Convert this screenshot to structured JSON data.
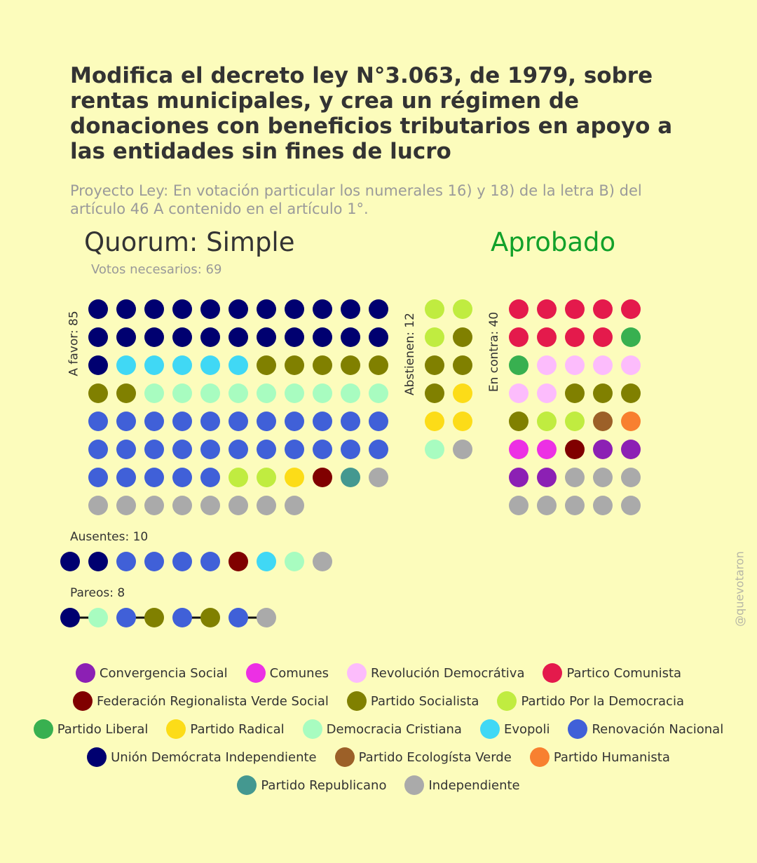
{
  "title": "Modifica el decreto ley N°3.063, de 1979, sobre rentas municipales, y crea un régimen de donaciones con beneficios tributarios en apoyo a las entidades sin fines de lucro",
  "subtitle": "Proyecto Ley: En votación particular los numerales 16) y 18) de la letra B) del artículo 46 A contenido en el artículo 1°.",
  "quorum": "Quorum: Simple",
  "result": "Aprobado",
  "votes_needed": "Votos necesarios: 69",
  "watermark": "@quevotaron",
  "colors": {
    "UDI": "#000070",
    "EVO": "#40d8f5",
    "PS": "#808000",
    "DC": "#a8fcc0",
    "RN": "#4060d8",
    "PPD": "#c0ec40",
    "PR": "#fcdc18",
    "FRVS": "#800000",
    "REP": "#449890",
    "IND": "#aaaaaa",
    "PC": "#e41a4c",
    "PL": "#38b050",
    "RD": "#fcbcfc",
    "PEV": "#9c6028",
    "PH": "#f88030",
    "COM": "#ec30e4",
    "CS": "#8c20b4"
  },
  "chart_data": {
    "type": "table",
    "groups": [
      {
        "key": "favor",
        "label": "A favor: 85",
        "count": 85,
        "cols": 11,
        "parties": [
          "UDI",
          "UDI",
          "UDI",
          "UDI",
          "UDI",
          "UDI",
          "UDI",
          "UDI",
          "UDI",
          "UDI",
          "UDI",
          "UDI",
          "UDI",
          "UDI",
          "UDI",
          "UDI",
          "UDI",
          "UDI",
          "UDI",
          "UDI",
          "UDI",
          "UDI",
          "UDI",
          "EVO",
          "EVO",
          "EVO",
          "EVO",
          "EVO",
          "PS",
          "PS",
          "PS",
          "PS",
          "PS",
          "PS",
          "PS",
          "DC",
          "DC",
          "DC",
          "DC",
          "DC",
          "DC",
          "DC",
          "DC",
          "DC",
          "RN",
          "RN",
          "RN",
          "RN",
          "RN",
          "RN",
          "RN",
          "RN",
          "RN",
          "RN",
          "RN",
          "RN",
          "RN",
          "RN",
          "RN",
          "RN",
          "RN",
          "RN",
          "RN",
          "RN",
          "RN",
          "RN",
          "RN",
          "RN",
          "RN",
          "RN",
          "RN",
          "PPD",
          "PPD",
          "PR",
          "FRVS",
          "REP",
          "IND",
          "IND",
          "IND",
          "IND",
          "IND",
          "IND",
          "IND",
          "IND",
          "IND"
        ]
      },
      {
        "key": "abstain",
        "label": "Abstienen: 12",
        "count": 12,
        "cols": 2,
        "parties": [
          "PPD",
          "PPD",
          "PPD",
          "PS",
          "PS",
          "PS",
          "PS",
          "PR",
          "PR",
          "PR",
          "DC",
          "IND"
        ]
      },
      {
        "key": "contra",
        "label": "En contra: 40",
        "count": 40,
        "cols": 5,
        "parties": [
          "PC",
          "PC",
          "PC",
          "PC",
          "PC",
          "PC",
          "PC",
          "PC",
          "PC",
          "PL",
          "PL",
          "RD",
          "RD",
          "RD",
          "RD",
          "RD",
          "RD",
          "PS",
          "PS",
          "PS",
          "PS",
          "PPD",
          "PPD",
          "PEV",
          "PH",
          "COM",
          "COM",
          "FRVS",
          "CS",
          "CS",
          "CS",
          "CS",
          "IND",
          "IND",
          "IND",
          "IND",
          "IND",
          "IND",
          "IND",
          "IND"
        ]
      },
      {
        "key": "ausentes",
        "label": "Ausentes: 10",
        "count": 10,
        "parties": [
          "UDI",
          "UDI",
          "RN",
          "RN",
          "RN",
          "RN",
          "FRVS",
          "EVO",
          "DC",
          "IND"
        ]
      },
      {
        "key": "pareos",
        "label": "Pareos: 8",
        "count": 8,
        "pairs": [
          [
            "UDI",
            "DC"
          ],
          [
            "RN",
            "PS"
          ],
          [
            "RN",
            "PS"
          ],
          [
            "RN",
            "IND"
          ]
        ]
      }
    ]
  },
  "legend": [
    [
      {
        "key": "CS",
        "label": "Convergencia Social"
      },
      {
        "key": "COM",
        "label": "Comunes"
      },
      {
        "key": "RD",
        "label": "Revolución Democrátiva"
      },
      {
        "key": "PC",
        "label": "Partico Comunista"
      }
    ],
    [
      {
        "key": "FRVS",
        "label": "Federación Regionalista Verde Social"
      },
      {
        "key": "PS",
        "label": "Partido Socialista"
      },
      {
        "key": "PPD",
        "label": "Partido Por la Democracia"
      }
    ],
    [
      {
        "key": "PL",
        "label": "Partido Liberal"
      },
      {
        "key": "PR",
        "label": "Partido Radical"
      },
      {
        "key": "DC",
        "label": "Democracia Cristiana"
      },
      {
        "key": "EVO",
        "label": "Evopoli"
      },
      {
        "key": "RN",
        "label": "Renovación Nacional"
      }
    ],
    [
      {
        "key": "UDI",
        "label": "Unión Demócrata Independiente"
      },
      {
        "key": "PEV",
        "label": "Partido Ecologísta Verde"
      },
      {
        "key": "PH",
        "label": "Partido Humanista"
      }
    ],
    [
      {
        "key": "REP",
        "label": "Partido Republicano"
      },
      {
        "key": "IND",
        "label": "Independiente"
      }
    ]
  ]
}
